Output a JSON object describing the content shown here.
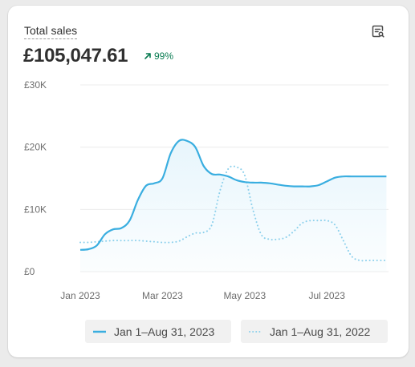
{
  "card": {
    "title": "Total sales",
    "total": "£105,047.61",
    "change": "99%",
    "report_icon": "report-search-icon",
    "change_icon": "arrow-up-right-icon"
  },
  "colors": {
    "current": "#3aaee0",
    "previous": "#8cd0ec",
    "area_fill": "#e6f5fc",
    "grid": "#ececec",
    "axis_text": "#6d6d6d",
    "positive": "#0a7c52"
  },
  "chart_data": {
    "type": "line",
    "title": "Total sales",
    "xlabel": "",
    "ylabel": "",
    "ylim": [
      0,
      30000
    ],
    "xlim": [
      0,
      7.5
    ],
    "y_ticks": [
      0,
      10000,
      20000,
      30000
    ],
    "y_tick_labels": [
      "£0",
      "£10K",
      "£20K",
      "£30K"
    ],
    "x_ticks": [
      0,
      2,
      4,
      6
    ],
    "x_tick_labels": [
      "Jan 2023",
      "Mar 2023",
      "May 2023",
      "Jul 2023"
    ],
    "grid": true,
    "legend": "bottom",
    "series": [
      {
        "name": "Jan 1–Aug 31, 2023",
        "style": "solid",
        "x": [
          0,
          0.2,
          0.4,
          0.6,
          0.8,
          1.0,
          1.2,
          1.4,
          1.6,
          1.8,
          2.0,
          2.2,
          2.4,
          2.6,
          2.8,
          3.0,
          3.2,
          3.4,
          3.6,
          3.8,
          4.0,
          4.2,
          4.4,
          4.6,
          4.8,
          5.0,
          5.2,
          5.4,
          5.6,
          5.8,
          6.0,
          6.2,
          6.4,
          6.6,
          6.8,
          7.0,
          7.2,
          7.45
        ],
        "y": [
          3500,
          3600,
          4200,
          6000,
          6800,
          7000,
          8200,
          11500,
          13800,
          14200,
          15000,
          19000,
          21000,
          21000,
          20000,
          17000,
          15700,
          15600,
          15300,
          14700,
          14400,
          14300,
          14300,
          14200,
          14000,
          13800,
          13700,
          13700,
          13700,
          13900,
          14500,
          15100,
          15300,
          15300,
          15300,
          15300,
          15300,
          15300
        ]
      },
      {
        "name": "Jan 1–Aug 31, 2022",
        "style": "dotted",
        "x": [
          0,
          0.2,
          0.4,
          0.6,
          0.8,
          1.0,
          1.2,
          1.4,
          1.6,
          1.8,
          2.0,
          2.2,
          2.4,
          2.6,
          2.8,
          3.0,
          3.2,
          3.4,
          3.6,
          3.8,
          4.0,
          4.2,
          4.4,
          4.6,
          4.8,
          5.0,
          5.2,
          5.4,
          5.6,
          5.8,
          6.0,
          6.2,
          6.4,
          6.6,
          6.8,
          7.0,
          7.2,
          7.45
        ],
        "y": [
          4700,
          4700,
          4800,
          4900,
          5000,
          5000,
          5000,
          5000,
          4900,
          4800,
          4700,
          4700,
          4900,
          5600,
          6200,
          6300,
          7500,
          13000,
          16500,
          16800,
          15500,
          10000,
          6000,
          5200,
          5200,
          5500,
          6500,
          7800,
          8200,
          8200,
          8200,
          7500,
          5000,
          2500,
          1800,
          1800,
          1800,
          1800
        ]
      }
    ]
  }
}
